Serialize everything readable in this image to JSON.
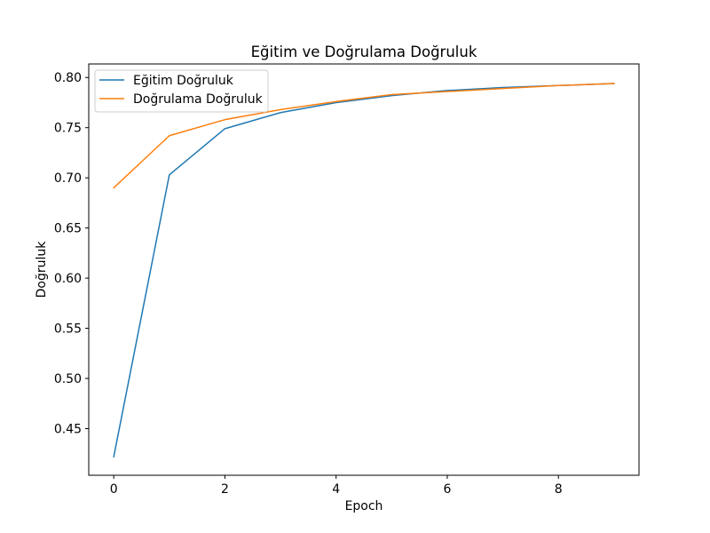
{
  "chart_data": {
    "type": "line",
    "title": "Eğitim ve Doğrulama Doğruluk",
    "xlabel": "Epoch",
    "ylabel": "Doğruluk",
    "xlim": [
      -0.45,
      9.45
    ],
    "ylim": [
      0.4035,
      0.8135
    ],
    "xticks": [
      0,
      2,
      4,
      6,
      8
    ],
    "yticks": [
      0.45,
      0.5,
      0.55,
      0.6,
      0.65,
      0.7,
      0.75,
      0.8
    ],
    "ytick_labels": [
      "0.45",
      "0.50",
      "0.55",
      "0.60",
      "0.65",
      "0.70",
      "0.75",
      "0.80"
    ],
    "grid": false,
    "legend_position": "top-left",
    "x": [
      0,
      1,
      2,
      3,
      4,
      5,
      6,
      7,
      8,
      9
    ],
    "series": [
      {
        "name": "Eğitim Doğruluk",
        "color": "#1f77b4",
        "values": [
          0.422,
          0.703,
          0.749,
          0.765,
          0.775,
          0.782,
          0.787,
          0.79,
          0.792,
          0.794
        ]
      },
      {
        "name": "Doğrulama Doğruluk",
        "color": "#ff7f0e",
        "values": [
          0.69,
          0.742,
          0.758,
          0.768,
          0.776,
          0.783,
          0.786,
          0.789,
          0.792,
          0.794
        ]
      }
    ]
  }
}
